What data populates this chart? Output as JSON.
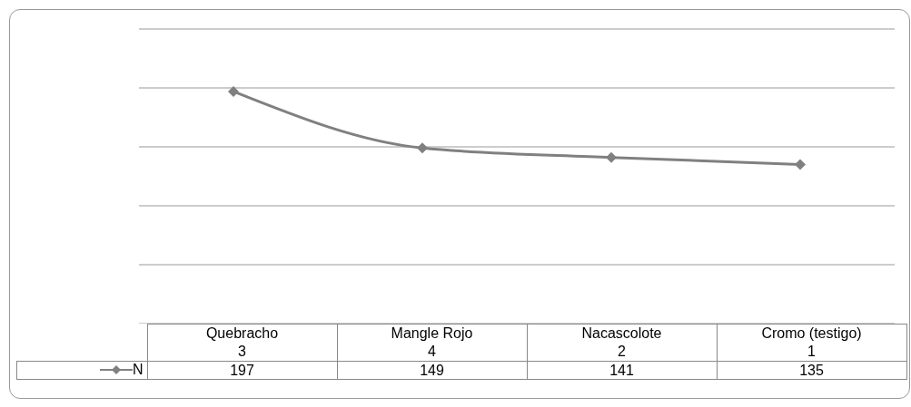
{
  "chart_data": {
    "type": "line",
    "categories": [
      "Quebracho\n3",
      "Mangle Rojo\n4",
      "Nacascolote\n2",
      "Cromo (testigo)\n1"
    ],
    "series": [
      {
        "name": "N",
        "color": "#808080",
        "values": [
          197,
          149,
          141,
          135
        ]
      }
    ],
    "ylim": [
      0,
      250
    ],
    "yticks": [
      {
        "value": 0,
        "label": null
      },
      {
        "value": 50,
        "label": null
      },
      {
        "value": 100,
        "label": null
      },
      {
        "value": 150,
        "label": null
      },
      {
        "value": 200,
        "label": null
      },
      {
        "value": 250,
        "label": null
      }
    ],
    "tick_labels": "x",
    "grid": "y",
    "legend": "bottom left",
    "marker": "diamond",
    "line_style": "solid",
    "data_labels": true
  }
}
